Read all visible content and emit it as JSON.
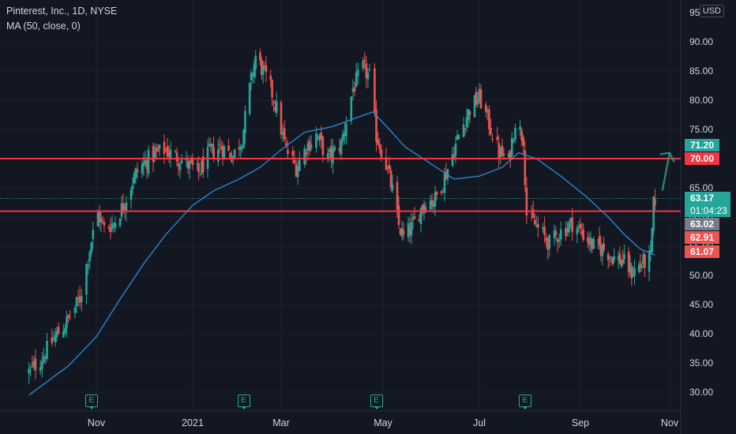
{
  "header": {
    "title": "Pinterest, Inc., 1D, NYSE",
    "indicator": "MA (50, close, 0)",
    "currency": "USD"
  },
  "colors": {
    "up": "#26a69a",
    "down": "#ef5350",
    "ma": "#2a85c8",
    "hline": "#f23645",
    "arrow": "#2e8b7a",
    "background": "#131722"
  },
  "price_badges": {
    "last": "63.17",
    "countdown": "01:04:23",
    "prev": "63.02",
    "high": "71.20",
    "level": "70.00",
    "open": "62.91",
    "low": "61.07"
  },
  "earnings_label": "E",
  "chart_data": {
    "type": "candlestick",
    "symbol": "Pinterest, Inc., 1D, NYSE",
    "currency": "USD",
    "y_ticks": [
      "95",
      "90.00",
      "85.00",
      "80.00",
      "75.00",
      "70.00",
      "65.00",
      "60.00",
      "55.00",
      "50.00",
      "45.00",
      "40.00",
      "35.00",
      "30.00"
    ],
    "x_ticks": [
      "Nov",
      "2021",
      "Mar",
      "May",
      "Jul",
      "Sep",
      "Nov"
    ],
    "ylim": [
      25.5,
      96
    ],
    "x_months": [
      {
        "date": "2020-09-01",
        "label": "",
        "x": -5
      },
      {
        "date": "2020-11-01",
        "label": "Nov",
        "x": 122
      },
      {
        "date": "2021-01-01",
        "label": "2021",
        "x": 244
      },
      {
        "date": "2021-03-01",
        "label": "Mar",
        "x": 356
      },
      {
        "date": "2021-05-01",
        "label": "May",
        "x": 485
      },
      {
        "date": "2021-07-01",
        "label": "Jul",
        "x": 607
      },
      {
        "date": "2021-09-01",
        "label": "Sep",
        "x": 735
      },
      {
        "date": "2021-11-01",
        "label": "Nov",
        "x": 848
      }
    ],
    "close_path": [
      [
        "2020-09-21",
        33.5
      ],
      [
        "2020-09-28",
        35.5
      ],
      [
        "2020-10-07",
        39.5
      ],
      [
        "2020-10-14",
        42.0
      ],
      [
        "2020-10-22",
        46.0
      ],
      [
        "2020-10-29",
        56.0
      ],
      [
        "2020-11-02",
        60.5
      ],
      [
        "2020-11-06",
        58.0
      ],
      [
        "2020-11-12",
        59.0
      ],
      [
        "2020-11-18",
        62.0
      ],
      [
        "2020-11-26",
        67.5
      ],
      [
        "2020-12-04",
        70.0
      ],
      [
        "2020-12-14",
        71.5
      ],
      [
        "2020-12-24",
        70.0
      ],
      [
        "2021-01-05",
        67.5
      ],
      [
        "2021-01-12",
        71.0
      ],
      [
        "2021-01-20",
        72.0
      ],
      [
        "2021-01-28",
        70.5
      ],
      [
        "2021-02-03",
        73.5
      ],
      [
        "2021-02-08",
        82.0
      ],
      [
        "2021-02-12",
        87.5
      ],
      [
        "2021-02-17",
        85.0
      ],
      [
        "2021-02-22",
        82.0
      ],
      [
        "2021-02-26",
        78.5
      ],
      [
        "2021-03-04",
        71.5
      ],
      [
        "2021-03-10",
        68.5
      ],
      [
        "2021-03-16",
        72.0
      ],
      [
        "2021-03-22",
        74.0
      ],
      [
        "2021-03-29",
        70.0
      ],
      [
        "2021-04-06",
        72.5
      ],
      [
        "2021-04-13",
        82.0
      ],
      [
        "2021-04-19",
        85.5
      ],
      [
        "2021-04-23",
        84.0
      ],
      [
        "2021-04-27",
        74.0
      ],
      [
        "2021-05-03",
        69.0
      ],
      [
        "2021-05-07",
        64.5
      ],
      [
        "2021-05-11",
        58.5
      ],
      [
        "2021-05-14",
        56.5
      ],
      [
        "2021-05-20",
        58.5
      ],
      [
        "2021-05-27",
        62.5
      ],
      [
        "2021-06-03",
        63.0
      ],
      [
        "2021-06-10",
        67.5
      ],
      [
        "2021-06-18",
        74.0
      ],
      [
        "2021-06-25",
        78.5
      ],
      [
        "2021-07-01",
        80.5
      ],
      [
        "2021-07-07",
        76.0
      ],
      [
        "2021-07-13",
        71.0
      ],
      [
        "2021-07-19",
        69.5
      ],
      [
        "2021-07-23",
        76.5
      ],
      [
        "2021-07-28",
        73.5
      ],
      [
        "2021-07-30",
        60.5
      ],
      [
        "2021-08-06",
        58.0
      ],
      [
        "2021-08-13",
        55.5
      ],
      [
        "2021-08-20",
        57.5
      ],
      [
        "2021-08-27",
        59.0
      ],
      [
        "2021-09-03",
        57.0
      ],
      [
        "2021-09-10",
        55.0
      ],
      [
        "2021-09-17",
        54.5
      ],
      [
        "2021-09-24",
        53.0
      ],
      [
        "2021-09-30",
        52.5
      ],
      [
        "2021-10-06",
        50.5
      ],
      [
        "2021-10-13",
        52.0
      ],
      [
        "2021-10-19",
        53.0
      ],
      [
        "2021-10-21",
        62.0
      ],
      [
        "2021-10-22",
        63.17
      ]
    ],
    "ma_50": [
      [
        "2020-09-21",
        29.5
      ],
      [
        "2020-10-15",
        34.5
      ],
      [
        "2020-11-01",
        39.5
      ],
      [
        "2020-11-15",
        45.5
      ],
      [
        "2020-12-01",
        52.0
      ],
      [
        "2020-12-15",
        57.0
      ],
      [
        "2021-01-01",
        62.0
      ],
      [
        "2021-01-15",
        64.5
      ],
      [
        "2021-02-01",
        66.5
      ],
      [
        "2021-02-15",
        68.5
      ],
      [
        "2021-03-01",
        71.5
      ],
      [
        "2021-03-15",
        74.5
      ],
      [
        "2021-04-01",
        75.5
      ],
      [
        "2021-04-15",
        77.0
      ],
      [
        "2021-04-25",
        78.0
      ],
      [
        "2021-05-05",
        75.0
      ],
      [
        "2021-05-15",
        72.0
      ],
      [
        "2021-06-01",
        69.0
      ],
      [
        "2021-06-15",
        66.5
      ],
      [
        "2021-07-01",
        67.0
      ],
      [
        "2021-07-15",
        68.5
      ],
      [
        "2021-07-25",
        71.0
      ],
      [
        "2021-08-05",
        70.0
      ],
      [
        "2021-08-20",
        67.0
      ],
      [
        "2021-09-05",
        63.5
      ],
      [
        "2021-09-20",
        60.0
      ],
      [
        "2021-10-01",
        57.0
      ],
      [
        "2021-10-12",
        54.5
      ],
      [
        "2021-10-22",
        53.5
      ]
    ],
    "horizontal_lines": [
      70.0,
      61.0
    ],
    "current_price_line": 63.17,
    "arrow": {
      "from": [
        "2021-10-27",
        64.5
      ],
      "to": [
        "2021-11-06",
        71.0
      ]
    },
    "earnings_dates": [
      "2020-10-29",
      "2021-02-04",
      "2021-04-27",
      "2021-07-29"
    ],
    "grid": true
  }
}
